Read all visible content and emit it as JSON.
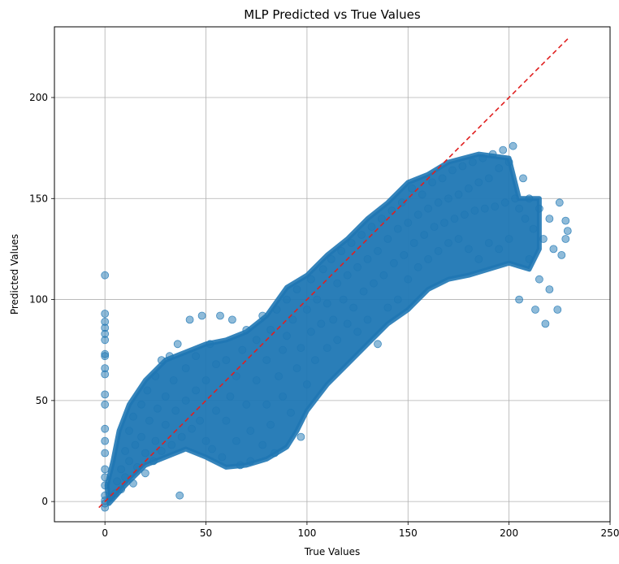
{
  "chart_data": {
    "type": "scatter",
    "title": "MLP Predicted vs True Values",
    "xlabel": "True Values",
    "ylabel": "Predicted Values",
    "xlim": [
      -25,
      250
    ],
    "ylim": [
      -10,
      235
    ],
    "xticks": [
      0,
      50,
      100,
      150,
      200,
      250
    ],
    "yticks": [
      0,
      50,
      100,
      150,
      200
    ],
    "grid": true,
    "point_color": "#1f77b4",
    "point_alpha": 0.5,
    "reference_line": {
      "style": "dashed",
      "color": "#e02020",
      "x": [
        -3,
        230
      ],
      "y": [
        -3,
        230
      ]
    },
    "series": [
      {
        "values": [
          [
            0,
            0.5
          ],
          [
            0,
            3
          ],
          [
            0,
            8
          ],
          [
            0,
            12
          ],
          [
            0,
            16
          ],
          [
            0,
            24
          ],
          [
            0,
            30
          ],
          [
            0,
            36
          ],
          [
            0,
            48
          ],
          [
            0,
            53
          ],
          [
            0,
            63
          ],
          [
            0,
            66
          ],
          [
            0,
            72
          ],
          [
            0,
            73
          ],
          [
            0,
            80
          ],
          [
            0,
            83
          ],
          [
            0,
            86
          ],
          [
            0,
            89
          ],
          [
            0,
            93
          ],
          [
            0,
            112
          ],
          [
            0,
            -3
          ],
          [
            0,
            -1
          ],
          [
            3,
            2
          ],
          [
            5,
            4
          ],
          [
            6,
            10
          ],
          [
            8,
            6
          ],
          [
            8,
            16
          ],
          [
            10,
            12
          ],
          [
            10,
            25
          ],
          [
            12,
            20
          ],
          [
            12,
            35
          ],
          [
            14,
            9
          ],
          [
            14,
            42
          ],
          [
            15,
            28
          ],
          [
            16,
            17
          ],
          [
            18,
            48
          ],
          [
            18,
            32
          ],
          [
            20,
            14
          ],
          [
            20,
            24
          ],
          [
            21,
            55
          ],
          [
            22,
            40
          ],
          [
            24,
            20
          ],
          [
            25,
            62
          ],
          [
            25,
            30
          ],
          [
            26,
            46
          ],
          [
            28,
            70
          ],
          [
            28,
            25
          ],
          [
            30,
            52
          ],
          [
            30,
            38
          ],
          [
            32,
            72
          ],
          [
            33,
            28
          ],
          [
            34,
            60
          ],
          [
            35,
            45
          ],
          [
            36,
            78
          ],
          [
            37,
            3
          ],
          [
            38,
            32
          ],
          [
            40,
            66
          ],
          [
            40,
            50
          ],
          [
            42,
            90
          ],
          [
            43,
            36
          ],
          [
            45,
            72
          ],
          [
            45,
            55
          ],
          [
            47,
            40
          ],
          [
            48,
            92
          ],
          [
            50,
            60
          ],
          [
            50,
            30
          ],
          [
            52,
            78
          ],
          [
            53,
            26
          ],
          [
            55,
            68
          ],
          [
            55,
            45
          ],
          [
            57,
            92
          ],
          [
            58,
            22
          ],
          [
            60,
            70
          ],
          [
            60,
            40
          ],
          [
            62,
            52
          ],
          [
            63,
            90
          ],
          [
            65,
            62
          ],
          [
            65,
            30
          ],
          [
            67,
            18
          ],
          [
            68,
            75
          ],
          [
            70,
            48
          ],
          [
            70,
            85
          ],
          [
            72,
            35
          ],
          [
            72,
            20
          ],
          [
            75,
            80
          ],
          [
            75,
            60
          ],
          [
            78,
            28
          ],
          [
            78,
            92
          ],
          [
            80,
            70
          ],
          [
            80,
            48
          ],
          [
            82,
            85
          ],
          [
            82,
            38
          ],
          [
            84,
            24
          ],
          [
            85,
            95
          ],
          [
            86,
            62
          ],
          [
            88,
            75
          ],
          [
            88,
            52
          ],
          [
            90,
            100
          ],
          [
            90,
            82
          ],
          [
            92,
            44
          ],
          [
            93,
            90
          ],
          [
            95,
            66
          ],
          [
            95,
            105
          ],
          [
            97,
            76
          ],
          [
            97,
            32
          ],
          [
            100,
            95
          ],
          [
            100,
            58
          ],
          [
            102,
            110
          ],
          [
            102,
            84
          ],
          [
            104,
            70
          ],
          [
            105,
            100
          ],
          [
            107,
            88
          ],
          [
            108,
            115
          ],
          [
            110,
            76
          ],
          [
            110,
            98
          ],
          [
            112,
            120
          ],
          [
            113,
            90
          ],
          [
            115,
            108
          ],
          [
            115,
            80
          ],
          [
            117,
            124
          ],
          [
            118,
            100
          ],
          [
            120,
            88
          ],
          [
            120,
            112
          ],
          [
            122,
            128
          ],
          [
            123,
            96
          ],
          [
            125,
            116
          ],
          [
            125,
            84
          ],
          [
            127,
            132
          ],
          [
            128,
            104
          ],
          [
            130,
            120
          ],
          [
            130,
            90
          ],
          [
            132,
            136
          ],
          [
            133,
            108
          ],
          [
            135,
            124
          ],
          [
            135,
            78
          ],
          [
            137,
            140
          ],
          [
            138,
            112
          ],
          [
            140,
            130
          ],
          [
            140,
            96
          ],
          [
            142,
            144
          ],
          [
            143,
            118
          ],
          [
            145,
            135
          ],
          [
            145,
            100
          ],
          [
            147,
            148
          ],
          [
            148,
            122
          ],
          [
            150,
            138
          ],
          [
            150,
            110
          ],
          [
            152,
            155
          ],
          [
            153,
            128
          ],
          [
            155,
            142
          ],
          [
            155,
            116
          ],
          [
            157,
            152
          ],
          [
            158,
            132
          ],
          [
            160,
            145
          ],
          [
            160,
            120
          ],
          [
            162,
            158
          ],
          [
            163,
            136
          ],
          [
            165,
            148
          ],
          [
            165,
            124
          ],
          [
            167,
            160
          ],
          [
            168,
            138
          ],
          [
            170,
            150
          ],
          [
            170,
            128
          ],
          [
            172,
            164
          ],
          [
            173,
            140
          ],
          [
            175,
            152
          ],
          [
            175,
            130
          ],
          [
            177,
            166
          ],
          [
            178,
            142
          ],
          [
            180,
            155
          ],
          [
            180,
            125
          ],
          [
            182,
            168
          ],
          [
            183,
            144
          ],
          [
            185,
            158
          ],
          [
            185,
            120
          ],
          [
            187,
            170
          ],
          [
            188,
            145
          ],
          [
            190,
            160
          ],
          [
            190,
            128
          ],
          [
            192,
            172
          ],
          [
            193,
            146
          ],
          [
            195,
            165
          ],
          [
            195,
            125
          ],
          [
            197,
            174
          ],
          [
            198,
            148
          ],
          [
            200,
            168
          ],
          [
            200,
            130
          ],
          [
            202,
            176
          ],
          [
            203,
            150
          ],
          [
            205,
            145
          ],
          [
            205,
            100
          ],
          [
            207,
            160
          ],
          [
            208,
            140
          ],
          [
            210,
            150
          ],
          [
            210,
            120
          ],
          [
            212,
            135
          ],
          [
            213,
            95
          ],
          [
            215,
            145
          ],
          [
            215,
            110
          ],
          [
            217,
            130
          ],
          [
            218,
            88
          ],
          [
            220,
            140
          ],
          [
            220,
            105
          ],
          [
            222,
            125
          ],
          [
            224,
            95
          ],
          [
            225,
            148
          ],
          [
            226,
            122
          ],
          [
            228,
            139
          ],
          [
            228,
            130
          ],
          [
            229,
            134
          ]
        ]
      }
    ],
    "cluster_envelope": [
      [
        2,
        -1
      ],
      [
        10,
        8
      ],
      [
        20,
        18
      ],
      [
        30,
        22
      ],
      [
        40,
        26
      ],
      [
        50,
        22
      ],
      [
        60,
        17
      ],
      [
        70,
        18
      ],
      [
        80,
        21
      ],
      [
        90,
        27
      ],
      [
        95,
        35
      ],
      [
        100,
        45
      ],
      [
        110,
        58
      ],
      [
        120,
        68
      ],
      [
        130,
        78
      ],
      [
        140,
        88
      ],
      [
        150,
        95
      ],
      [
        160,
        105
      ],
      [
        170,
        110
      ],
      [
        180,
        112
      ],
      [
        190,
        115
      ],
      [
        200,
        118
      ],
      [
        210,
        115
      ],
      [
        215,
        125
      ],
      [
        215,
        150
      ],
      [
        205,
        150
      ],
      [
        200,
        170
      ],
      [
        185,
        172
      ],
      [
        170,
        168
      ],
      [
        160,
        162
      ],
      [
        150,
        158
      ],
      [
        140,
        148
      ],
      [
        130,
        140
      ],
      [
        120,
        130
      ],
      [
        110,
        122
      ],
      [
        100,
        112
      ],
      [
        90,
        106
      ],
      [
        80,
        92
      ],
      [
        70,
        84
      ],
      [
        60,
        80
      ],
      [
        50,
        78
      ],
      [
        40,
        74
      ],
      [
        30,
        70
      ],
      [
        20,
        60
      ],
      [
        12,
        48
      ],
      [
        7,
        35
      ],
      [
        4,
        20
      ],
      [
        1,
        8
      ]
    ]
  }
}
